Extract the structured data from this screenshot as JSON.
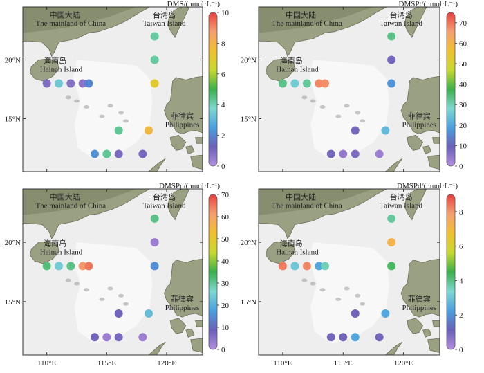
{
  "panels": [
    {
      "id": "dms",
      "colorbar": {
        "label": "DMS/(nmol·L⁻¹)",
        "max": 10,
        "ticks": [
          0,
          2,
          4,
          6,
          8,
          10
        ]
      },
      "show_x_labels": false,
      "points": [
        {
          "lon": 110.0,
          "lat": 18.0,
          "value": 0.9
        },
        {
          "lon": 111.0,
          "lat": 18.0,
          "value": 3.4
        },
        {
          "lon": 112.0,
          "lat": 18.0,
          "value": 0.8
        },
        {
          "lon": 113.0,
          "lat": 18.0,
          "value": 0.7
        },
        {
          "lon": 113.5,
          "lat": 18.0,
          "value": 2.0
        },
        {
          "lon": 119.0,
          "lat": 22.0,
          "value": 4.2
        },
        {
          "lon": 119.0,
          "lat": 20.0,
          "value": 4.2
        },
        {
          "lon": 119.0,
          "lat": 18.0,
          "value": 7.0
        },
        {
          "lon": 116.0,
          "lat": 14.0,
          "value": 4.3
        },
        {
          "lon": 118.5,
          "lat": 14.0,
          "value": 7.8
        },
        {
          "lon": 114.0,
          "lat": 12.0,
          "value": 2.2
        },
        {
          "lon": 115.0,
          "lat": 12.0,
          "value": 4.3
        },
        {
          "lon": 116.0,
          "lat": 12.0,
          "value": 1.0
        },
        {
          "lon": 118.0,
          "lat": 12.0,
          "value": 1.0
        }
      ]
    },
    {
      "id": "dmspt",
      "colorbar": {
        "label": "DMSPt/(nmol·L⁻¹)",
        "max": 75,
        "ticks": [
          0,
          10,
          20,
          30,
          40,
          50,
          60,
          70
        ]
      },
      "show_x_labels": false,
      "points": [
        {
          "lon": 110.0,
          "lat": 18.0,
          "value": 33
        },
        {
          "lon": 111.0,
          "lat": 18.0,
          "value": 26
        },
        {
          "lon": 112.0,
          "lat": 18.0,
          "value": 32
        },
        {
          "lon": 113.0,
          "lat": 18.0,
          "value": 68
        },
        {
          "lon": 113.5,
          "lat": 18.0,
          "value": 67
        },
        {
          "lon": 119.0,
          "lat": 22.0,
          "value": 33
        },
        {
          "lon": 119.0,
          "lat": 20.0,
          "value": 8
        },
        {
          "lon": 119.0,
          "lat": 18.0,
          "value": 17
        },
        {
          "lon": 116.0,
          "lat": 14.0,
          "value": 8
        },
        {
          "lon": 118.5,
          "lat": 14.0,
          "value": 23
        },
        {
          "lon": 114.0,
          "lat": 12.0,
          "value": 8
        },
        {
          "lon": 115.0,
          "lat": 12.0,
          "value": 4
        },
        {
          "lon": 116.0,
          "lat": 12.0,
          "value": 7
        },
        {
          "lon": 118.0,
          "lat": 12.0,
          "value": 3
        }
      ]
    },
    {
      "id": "dmspp",
      "colorbar": {
        "label": "DMSPp/(nmol·L⁻¹)",
        "max": 70,
        "ticks": [
          0,
          10,
          20,
          30,
          40,
          50,
          60,
          70
        ]
      },
      "show_x_labels": true,
      "points": [
        {
          "lon": 110.0,
          "lat": 18.0,
          "value": 32
        },
        {
          "lon": 111.0,
          "lat": 18.0,
          "value": 24
        },
        {
          "lon": 112.0,
          "lat": 18.0,
          "value": 31
        },
        {
          "lon": 113.0,
          "lat": 18.0,
          "value": 62
        },
        {
          "lon": 113.5,
          "lat": 18.0,
          "value": 65
        },
        {
          "lon": 119.0,
          "lat": 22.0,
          "value": 31
        },
        {
          "lon": 119.0,
          "lat": 20.0,
          "value": 3
        },
        {
          "lon": 119.0,
          "lat": 18.0,
          "value": 15
        },
        {
          "lon": 116.0,
          "lat": 14.0,
          "value": 8
        },
        {
          "lon": 118.5,
          "lat": 14.0,
          "value": 22
        },
        {
          "lon": 114.0,
          "lat": 12.0,
          "value": 8
        },
        {
          "lon": 115.0,
          "lat": 12.0,
          "value": 3
        },
        {
          "lon": 116.0,
          "lat": 12.0,
          "value": 7
        },
        {
          "lon": 118.0,
          "lat": 12.0,
          "value": 3
        }
      ]
    },
    {
      "id": "dmspd",
      "colorbar": {
        "label": "DMSPd/(nmol·L⁻¹)",
        "max": 9,
        "ticks": [
          0,
          2,
          4,
          6,
          8
        ]
      },
      "show_x_labels": true,
      "points": [
        {
          "lon": 110.0,
          "lat": 18.0,
          "value": 8.3
        },
        {
          "lon": 111.0,
          "lat": 18.0,
          "value": 3.0
        },
        {
          "lon": 112.0,
          "lat": 18.0,
          "value": 8.2
        },
        {
          "lon": 113.0,
          "lat": 18.0,
          "value": 2.4
        },
        {
          "lon": 113.5,
          "lat": 18.0,
          "value": 3.6
        },
        {
          "lon": 119.0,
          "lat": 22.0,
          "value": 3.8
        },
        {
          "lon": 119.0,
          "lat": 20.0,
          "value": 7.2
        },
        {
          "lon": 119.0,
          "lat": 18.0,
          "value": 4.3
        },
        {
          "lon": 116.0,
          "lat": 14.0,
          "value": 1.0
        },
        {
          "lon": 118.5,
          "lat": 14.0,
          "value": 2.4
        },
        {
          "lon": 114.0,
          "lat": 12.0,
          "value": 1.0
        },
        {
          "lon": 115.0,
          "lat": 12.0,
          "value": 1.0
        },
        {
          "lon": 116.0,
          "lat": 12.0,
          "value": 2.4
        },
        {
          "lon": 118.0,
          "lat": 12.0,
          "value": 1.0
        }
      ]
    }
  ],
  "map": {
    "lon_range": [
      108,
      123
    ],
    "lat_range": [
      10.5,
      24.5
    ],
    "x_ticks": [
      {
        "value": 110,
        "label": "110°E"
      },
      {
        "value": 115,
        "label": "115°E"
      },
      {
        "value": 120,
        "label": "120°E"
      }
    ],
    "y_ticks": [
      {
        "value": 15,
        "label": "15°N"
      },
      {
        "value": 20,
        "label": "20°N"
      }
    ],
    "place_labels": {
      "mainland_cn": "中国大陆",
      "mainland_en": "The mainland of China",
      "taiwan_cn": "台湾岛",
      "taiwan_en": "Taiwan Island",
      "hainan_cn": "海南岛",
      "hainan_en": "Hainan Island",
      "philippines_cn": "菲律宾",
      "philippines_en": "Philippines"
    }
  },
  "colormap": [
    "#b48ee0",
    "#6a60b8",
    "#4aa0e0",
    "#7fd8d0",
    "#3ab04a",
    "#c8d830",
    "#f0c030",
    "#f5a070",
    "#e84040"
  ]
}
